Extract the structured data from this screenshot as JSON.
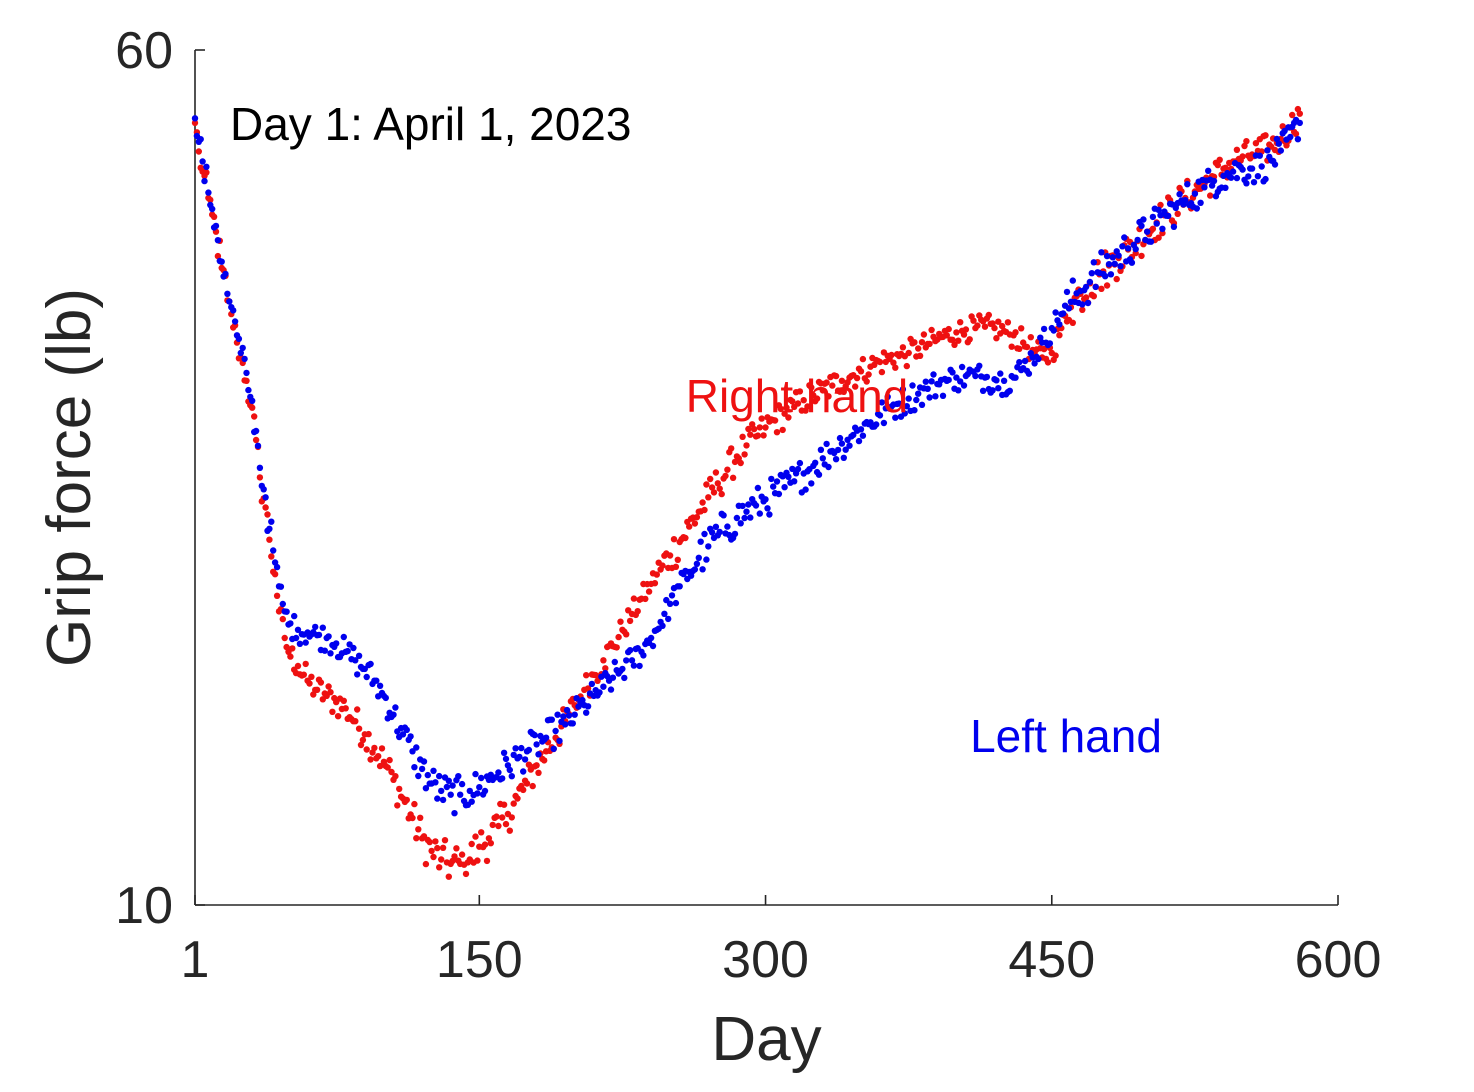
{
  "chart_data": {
    "type": "scatter",
    "xlabel": "Day",
    "ylabel": "Grip force (lb)",
    "xlim": [
      1,
      600
    ],
    "ylim": [
      10,
      60
    ],
    "xticks": [
      1,
      150,
      300,
      450,
      600
    ],
    "yticks": [
      10,
      60
    ],
    "grid": false,
    "box": "left-bottom axes only",
    "annotations": [
      {
        "text": "Day 1: April 1, 2023",
        "color": "#000000"
      },
      {
        "text": "Right hand",
        "color": "#ee1111"
      },
      {
        "text": "Left hand",
        "color": "#0000ee"
      }
    ],
    "series": [
      {
        "name": "Right hand",
        "color": "#ee1111",
        "points": [
          [
            1,
            51.5
          ],
          [
            3,
            48.5
          ],
          [
            5,
            46.5
          ],
          [
            8,
            44.0
          ],
          [
            10,
            42.5
          ],
          [
            12,
            41.0
          ],
          [
            15,
            38.0
          ],
          [
            18,
            35.5
          ],
          [
            20,
            34.5
          ],
          [
            23,
            32.5
          ],
          [
            25,
            31.5
          ],
          [
            28,
            30.0
          ],
          [
            30,
            28.5
          ],
          [
            33,
            26.5
          ],
          [
            35,
            24.5
          ],
          [
            38,
            23.0
          ],
          [
            40,
            21.5
          ],
          [
            43,
            20.0
          ],
          [
            45,
            18.5
          ],
          [
            48,
            17.5
          ],
          [
            50,
            17.0
          ],
          [
            55,
            16.5
          ],
          [
            60,
            16.0
          ],
          [
            65,
            15.7
          ],
          [
            70,
            15.5
          ],
          [
            75,
            15.3
          ],
          [
            80,
            15.1
          ],
          [
            85,
            14.7
          ],
          [
            90,
            14.3
          ],
          [
            95,
            13.9
          ],
          [
            100,
            13.5
          ],
          [
            105,
            13.0
          ],
          [
            110,
            12.5
          ],
          [
            115,
            12.0
          ],
          [
            120,
            11.5
          ],
          [
            125,
            11.2
          ],
          [
            130,
            11.0
          ],
          [
            135,
            10.9
          ],
          [
            140,
            10.9
          ],
          [
            145,
            11.0
          ],
          [
            150,
            11.3
          ],
          [
            155,
            11.5
          ],
          [
            160,
            11.8
          ],
          [
            165,
            12.1
          ],
          [
            170,
            12.5
          ],
          [
            175,
            12.9
          ],
          [
            180,
            13.4
          ],
          [
            185,
            13.8
          ],
          [
            190,
            14.2
          ],
          [
            195,
            14.7
          ],
          [
            200,
            15.2
          ],
          [
            205,
            15.7
          ],
          [
            210,
            16.2
          ],
          [
            215,
            16.7
          ],
          [
            220,
            17.2
          ],
          [
            225,
            17.8
          ],
          [
            230,
            18.4
          ],
          [
            235,
            19.0
          ],
          [
            240,
            19.6
          ],
          [
            245,
            20.2
          ],
          [
            250,
            20.8
          ],
          [
            255,
            21.4
          ],
          [
            260,
            22.1
          ],
          [
            265,
            22.8
          ],
          [
            270,
            23.5
          ],
          [
            275,
            24.2
          ],
          [
            280,
            24.9
          ],
          [
            285,
            25.6
          ],
          [
            290,
            26.2
          ],
          [
            295,
            26.7
          ],
          [
            300,
            27.2
          ],
          [
            305,
            27.6
          ],
          [
            310,
            28.0
          ],
          [
            315,
            28.4
          ],
          [
            320,
            28.8
          ],
          [
            325,
            29.1
          ],
          [
            330,
            29.4
          ],
          [
            335,
            29.7
          ],
          [
            340,
            30.0
          ],
          [
            345,
            30.3
          ],
          [
            350,
            30.6
          ],
          [
            355,
            30.9
          ],
          [
            360,
            31.2
          ],
          [
            365,
            31.4
          ],
          [
            370,
            31.6
          ],
          [
            375,
            31.8
          ],
          [
            380,
            32.1
          ],
          [
            385,
            32.4
          ],
          [
            390,
            32.7
          ],
          [
            395,
            33.0
          ],
          [
            400,
            33.2
          ],
          [
            405,
            33.4
          ],
          [
            410,
            33.5
          ],
          [
            415,
            33.6
          ],
          [
            420,
            33.5
          ],
          [
            425,
            33.3
          ],
          [
            430,
            33.0
          ],
          [
            435,
            32.5
          ],
          [
            440,
            32.0
          ],
          [
            445,
            31.5
          ],
          [
            450,
            31.8
          ],
          [
            455,
            33.5
          ],
          [
            460,
            35.0
          ],
          [
            465,
            36.0
          ],
          [
            470,
            36.8
          ],
          [
            475,
            37.5
          ],
          [
            480,
            38.2
          ],
          [
            485,
            38.8
          ],
          [
            490,
            39.5
          ],
          [
            495,
            40.2
          ],
          [
            500,
            41.0
          ],
          [
            505,
            41.8
          ],
          [
            510,
            42.5
          ],
          [
            515,
            43.3
          ],
          [
            520,
            44.0
          ],
          [
            525,
            44.6
          ],
          [
            530,
            45.3
          ],
          [
            535,
            46.0
          ],
          [
            540,
            46.8
          ],
          [
            545,
            47.5
          ],
          [
            550,
            48.0
          ],
          [
            555,
            48.2
          ],
          [
            560,
            48.5
          ],
          [
            565,
            49.0
          ],
          [
            570,
            49.8
          ],
          [
            575,
            51.0
          ],
          [
            580,
            52.5
          ]
        ]
      },
      {
        "name": "Left hand",
        "color": "#0000ee",
        "points": [
          [
            1,
            52.0
          ],
          [
            3,
            49.5
          ],
          [
            5,
            47.5
          ],
          [
            8,
            44.5
          ],
          [
            10,
            43.0
          ],
          [
            12,
            41.5
          ],
          [
            15,
            38.5
          ],
          [
            18,
            36.0
          ],
          [
            20,
            35.0
          ],
          [
            23,
            33.0
          ],
          [
            25,
            31.8
          ],
          [
            28,
            30.5
          ],
          [
            30,
            29.0
          ],
          [
            33,
            27.0
          ],
          [
            35,
            25.0
          ],
          [
            38,
            23.5
          ],
          [
            40,
            22.0
          ],
          [
            43,
            20.5
          ],
          [
            45,
            19.5
          ],
          [
            48,
            18.5
          ],
          [
            50,
            18.0
          ],
          [
            55,
            17.8
          ],
          [
            60,
            17.7
          ],
          [
            65,
            17.6
          ],
          [
            70,
            17.5
          ],
          [
            75,
            17.3
          ],
          [
            80,
            17.0
          ],
          [
            85,
            16.7
          ],
          [
            90,
            16.4
          ],
          [
            95,
            16.0
          ],
          [
            100,
            15.5
          ],
          [
            105,
            14.9
          ],
          [
            110,
            14.3
          ],
          [
            115,
            13.8
          ],
          [
            120,
            13.3
          ],
          [
            125,
            12.9
          ],
          [
            130,
            12.7
          ],
          [
            135,
            12.6
          ],
          [
            140,
            12.6
          ],
          [
            145,
            12.7
          ],
          [
            150,
            12.8
          ],
          [
            155,
            13.0
          ],
          [
            160,
            13.2
          ],
          [
            165,
            13.4
          ],
          [
            170,
            13.6
          ],
          [
            175,
            13.8
          ],
          [
            180,
            14.0
          ],
          [
            185,
            14.2
          ],
          [
            190,
            14.4
          ],
          [
            195,
            14.6
          ],
          [
            200,
            14.9
          ],
          [
            205,
            15.2
          ],
          [
            210,
            15.5
          ],
          [
            215,
            15.8
          ],
          [
            220,
            16.1
          ],
          [
            225,
            16.4
          ],
          [
            230,
            16.7
          ],
          [
            235,
            17.0
          ],
          [
            240,
            17.5
          ],
          [
            245,
            18.1
          ],
          [
            250,
            18.8
          ],
          [
            255,
            19.5
          ],
          [
            260,
            20.1
          ],
          [
            265,
            20.7
          ],
          [
            270,
            21.2
          ],
          [
            275,
            21.7
          ],
          [
            280,
            22.1
          ],
          [
            285,
            22.5
          ],
          [
            290,
            22.8
          ],
          [
            295,
            23.1
          ],
          [
            300,
            23.4
          ],
          [
            305,
            23.7
          ],
          [
            310,
            24.0
          ],
          [
            315,
            24.3
          ],
          [
            320,
            24.7
          ],
          [
            325,
            25.1
          ],
          [
            330,
            25.5
          ],
          [
            335,
            25.9
          ],
          [
            340,
            26.3
          ],
          [
            345,
            26.7
          ],
          [
            350,
            27.1
          ],
          [
            355,
            27.5
          ],
          [
            360,
            27.9
          ],
          [
            365,
            28.3
          ],
          [
            370,
            28.6
          ],
          [
            375,
            28.9
          ],
          [
            380,
            29.2
          ],
          [
            385,
            29.5
          ],
          [
            390,
            29.8
          ],
          [
            395,
            30.0
          ],
          [
            400,
            30.2
          ],
          [
            405,
            30.3
          ],
          [
            410,
            30.3
          ],
          [
            415,
            30.2
          ],
          [
            420,
            30.1
          ],
          [
            425,
            30.0
          ],
          [
            430,
            30.2
          ],
          [
            435,
            30.8
          ],
          [
            440,
            31.5
          ],
          [
            445,
            32.5
          ],
          [
            450,
            33.5
          ],
          [
            455,
            34.5
          ],
          [
            460,
            35.4
          ],
          [
            465,
            36.2
          ],
          [
            470,
            36.9
          ],
          [
            475,
            37.6
          ],
          [
            480,
            38.3
          ],
          [
            485,
            39.0
          ],
          [
            490,
            39.6
          ],
          [
            495,
            40.3
          ],
          [
            500,
            41.0
          ],
          [
            505,
            41.7
          ],
          [
            510,
            42.4
          ],
          [
            515,
            43.1
          ],
          [
            520,
            43.8
          ],
          [
            525,
            44.4
          ],
          [
            530,
            45.0
          ],
          [
            535,
            45.6
          ],
          [
            540,
            46.1
          ],
          [
            545,
            46.5
          ],
          [
            550,
            46.7
          ],
          [
            555,
            46.8
          ],
          [
            560,
            47.0
          ],
          [
            565,
            47.6
          ],
          [
            570,
            48.6
          ],
          [
            575,
            50.0
          ],
          [
            580,
            51.5
          ]
        ]
      }
    ]
  }
}
